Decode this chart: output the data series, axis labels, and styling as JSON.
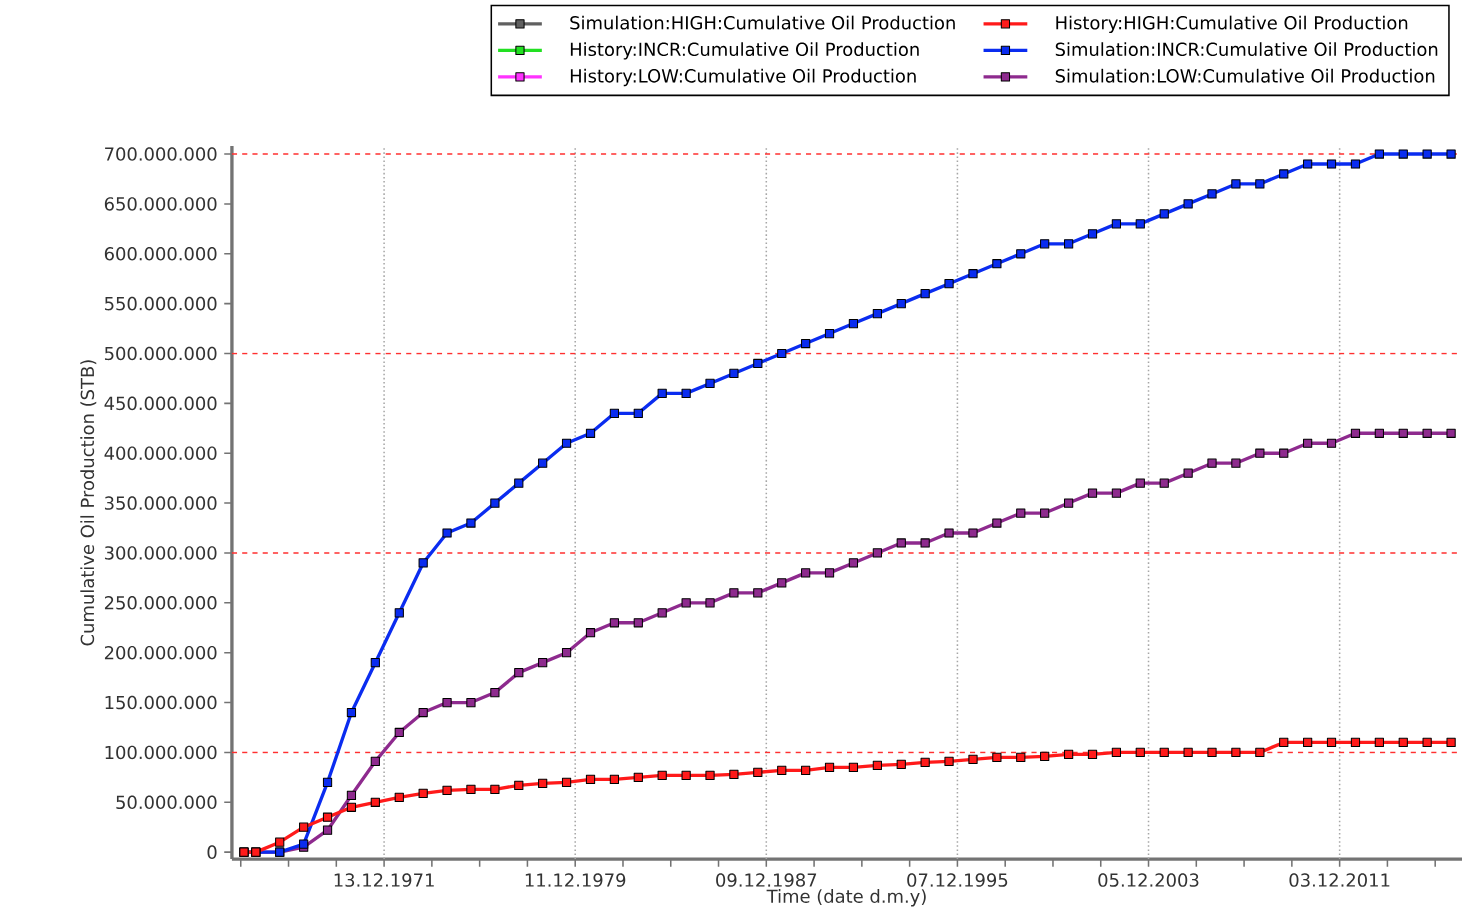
{
  "chart_data": {
    "type": "line",
    "xlabel": "Time (date d.m.y)",
    "ylabel": "Cumulative Oil Production (STB)",
    "x": [
      "1966-02-01",
      "1966-08-01",
      "1967-08-01",
      "1968-08-01",
      "1969-08-01",
      "1970-08-01",
      "1971-08-01",
      "1972-08-01",
      "1973-08-01",
      "1974-08-01",
      "1975-08-01",
      "1976-08-01",
      "1977-08-01",
      "1978-08-01",
      "1979-08-01",
      "1980-08-01",
      "1981-08-01",
      "1982-08-01",
      "1983-08-01",
      "1984-08-01",
      "1985-08-01",
      "1986-08-01",
      "1987-08-01",
      "1988-08-01",
      "1989-08-01",
      "1990-08-01",
      "1991-08-01",
      "1992-08-01",
      "1993-08-01",
      "1994-08-01",
      "1995-08-01",
      "1996-08-01",
      "1997-08-01",
      "1998-08-01",
      "1999-08-01",
      "2000-08-01",
      "2001-08-01",
      "2002-08-01",
      "2003-08-01",
      "2004-08-01",
      "2005-08-01",
      "2006-08-01",
      "2007-08-01",
      "2008-08-01",
      "2009-08-01",
      "2010-08-01",
      "2011-08-01",
      "2012-08-01",
      "2013-08-01",
      "2014-08-01",
      "2015-08-01",
      "2016-08-01"
    ],
    "series": [
      {
        "name": "Simulation:HIGH:Cumulative Oil Production",
        "color": "#606060",
        "values": [
          null,
          null,
          null,
          null,
          null,
          null,
          null,
          null,
          null,
          null,
          null,
          null,
          null,
          null,
          null,
          null,
          null,
          null,
          null,
          null,
          null,
          null,
          null,
          null,
          null,
          null,
          null,
          null,
          null,
          null,
          null,
          null,
          null,
          null,
          null,
          null,
          null,
          null,
          null,
          null,
          null,
          null,
          null,
          null,
          null,
          null,
          null,
          null,
          null,
          null,
          null,
          null
        ]
      },
      {
        "name": "History:HIGH:Cumulative Oil Production",
        "color": "#ff1a1a",
        "values": [
          0,
          0,
          10000000,
          25000000,
          35000000,
          45000000,
          50000000,
          55000000,
          59000000,
          62000000,
          63000000,
          63000000,
          67000000,
          69000000,
          70000000,
          73000000,
          73000000,
          75000000,
          77000000,
          77000000,
          77000000,
          78000000,
          80000000,
          82000000,
          82000000,
          85000000,
          85000000,
          87000000,
          88000000,
          90000000,
          91000000,
          93000000,
          95000000,
          95000000,
          96000000,
          98000000,
          98000000,
          100000000,
          100000000,
          100000000,
          100000000,
          100000000,
          100000000,
          100000000,
          110000000,
          110000000,
          110000000,
          110000000,
          110000000,
          110000000,
          110000000,
          110000000
        ]
      },
      {
        "name": "History:INCR:Cumulative Oil Production",
        "color": "#22e022",
        "values": [
          null,
          null,
          null,
          null,
          null,
          null,
          null,
          null,
          null,
          null,
          null,
          null,
          null,
          null,
          null,
          null,
          null,
          null,
          null,
          null,
          null,
          null,
          null,
          null,
          null,
          null,
          null,
          null,
          null,
          null,
          null,
          null,
          null,
          null,
          null,
          null,
          null,
          null,
          null,
          null,
          null,
          null,
          null,
          null,
          null,
          null,
          null,
          null,
          null,
          null,
          null,
          null
        ]
      },
      {
        "name": "Simulation:INCR:Cumulative Oil Production",
        "color": "#0a2cf0",
        "values": [
          0,
          0,
          0,
          8000000,
          70000000,
          140000000,
          190000000,
          240000000,
          290000000,
          320000000,
          330000000,
          350000000,
          370000000,
          390000000,
          410000000,
          420000000,
          440000000,
          440000000,
          460000000,
          460000000,
          470000000,
          480000000,
          490000000,
          500000000,
          510000000,
          520000000,
          530000000,
          540000000,
          550000000,
          560000000,
          570000000,
          580000000,
          590000000,
          600000000,
          610000000,
          610000000,
          620000000,
          630000000,
          630000000,
          640000000,
          650000000,
          660000000,
          670000000,
          670000000,
          680000000,
          690000000,
          690000000,
          690000000,
          700000000,
          700000000,
          700000000,
          700000000
        ]
      },
      {
        "name": "History:LOW:Cumulative Oil Production",
        "color": "#ff33ff",
        "values": [
          null,
          null,
          null,
          null,
          null,
          null,
          null,
          null,
          null,
          null,
          null,
          null,
          null,
          null,
          null,
          null,
          null,
          null,
          null,
          null,
          null,
          null,
          null,
          null,
          null,
          null,
          null,
          null,
          null,
          null,
          null,
          null,
          null,
          null,
          null,
          null,
          null,
          null,
          null,
          null,
          null,
          null,
          null,
          null,
          null,
          null,
          null,
          null,
          null,
          null,
          null,
          null
        ]
      },
      {
        "name": "Simulation:LOW:Cumulative Oil Production",
        "color": "#8e2a8e",
        "values": [
          0,
          0,
          0,
          5000000,
          22000000,
          57000000,
          91000000,
          120000000,
          140000000,
          150000000,
          150000000,
          160000000,
          180000000,
          190000000,
          200000000,
          220000000,
          230000000,
          230000000,
          240000000,
          250000000,
          250000000,
          260000000,
          260000000,
          270000000,
          280000000,
          280000000,
          290000000,
          300000000,
          310000000,
          310000000,
          320000000,
          320000000,
          330000000,
          340000000,
          340000000,
          350000000,
          360000000,
          360000000,
          370000000,
          370000000,
          380000000,
          390000000,
          390000000,
          400000000,
          400000000,
          410000000,
          410000000,
          420000000,
          420000000,
          420000000,
          420000000,
          420000000
        ]
      }
    ],
    "xlim": [
      "1965-08-01",
      "2017-01-15"
    ],
    "xticks": [
      {
        "value": "1965-12-14",
        "label": null
      },
      {
        "value": "1967-12-14",
        "label": null
      },
      {
        "value": "1969-12-13",
        "label": null
      },
      {
        "value": "1971-12-13",
        "label": "13.12.1971"
      },
      {
        "value": "1973-12-12",
        "label": null
      },
      {
        "value": "1975-12-12",
        "label": null
      },
      {
        "value": "1977-12-11",
        "label": null
      },
      {
        "value": "1979-12-11",
        "label": "11.12.1979"
      },
      {
        "value": "1981-12-10",
        "label": null
      },
      {
        "value": "1983-12-10",
        "label": null
      },
      {
        "value": "1985-12-09",
        "label": null
      },
      {
        "value": "1987-12-09",
        "label": "09.12.1987"
      },
      {
        "value": "1989-12-08",
        "label": null
      },
      {
        "value": "1991-12-08",
        "label": null
      },
      {
        "value": "1993-12-07",
        "label": null
      },
      {
        "value": "1995-12-07",
        "label": "07.12.1995"
      },
      {
        "value": "1997-12-06",
        "label": null
      },
      {
        "value": "1999-12-06",
        "label": null
      },
      {
        "value": "2001-12-05",
        "label": null
      },
      {
        "value": "2003-12-05",
        "label": "05.12.2003"
      },
      {
        "value": "2005-12-04",
        "label": null
      },
      {
        "value": "2007-12-04",
        "label": null
      },
      {
        "value": "2009-12-03",
        "label": null
      },
      {
        "value": "2011-12-03",
        "label": "03.12.2011"
      },
      {
        "value": "2013-12-02",
        "label": null
      },
      {
        "value": "2015-12-02",
        "label": null
      }
    ],
    "ylim": [
      -7000000,
      708000000
    ],
    "yticks": [
      0,
      {
        "value": 50000000,
        "label": "50.000.000"
      },
      {
        "value": 100000000,
        "label": "100.000.000"
      },
      {
        "value": 150000000,
        "label": "150.000.000"
      },
      {
        "value": 200000000,
        "label": "200.000.000"
      },
      {
        "value": 250000000,
        "label": "250.000.000"
      },
      {
        "value": 300000000,
        "label": "300.000.000"
      },
      {
        "value": 350000000,
        "label": "350.000.000"
      },
      {
        "value": 400000000,
        "label": "400.000.000"
      },
      {
        "value": 450000000,
        "label": "450.000.000"
      },
      {
        "value": 500000000,
        "label": "500.000.000"
      },
      {
        "value": 550000000,
        "label": "550.000.000"
      },
      {
        "value": 600000000,
        "label": "600.000.000"
      },
      {
        "value": 650000000,
        "label": "650.000.000"
      },
      {
        "value": 700000000,
        "label": "700.000.000"
      }
    ],
    "ref_lines": [
      {
        "axis": "y",
        "value": 100000000,
        "color": "#ff3030",
        "line_style": "dashed"
      },
      {
        "axis": "y",
        "value": 300000000,
        "color": "#ff3030",
        "line_style": "dashed"
      },
      {
        "axis": "y",
        "value": 500000000,
        "color": "#ff3030",
        "line_style": "dashed"
      },
      {
        "axis": "y",
        "value": 700000000,
        "color": "#ff3030",
        "line_style": "dashed"
      }
    ],
    "grid": "x",
    "legend": "top right",
    "marker": "square",
    "line_style": "solid"
  }
}
